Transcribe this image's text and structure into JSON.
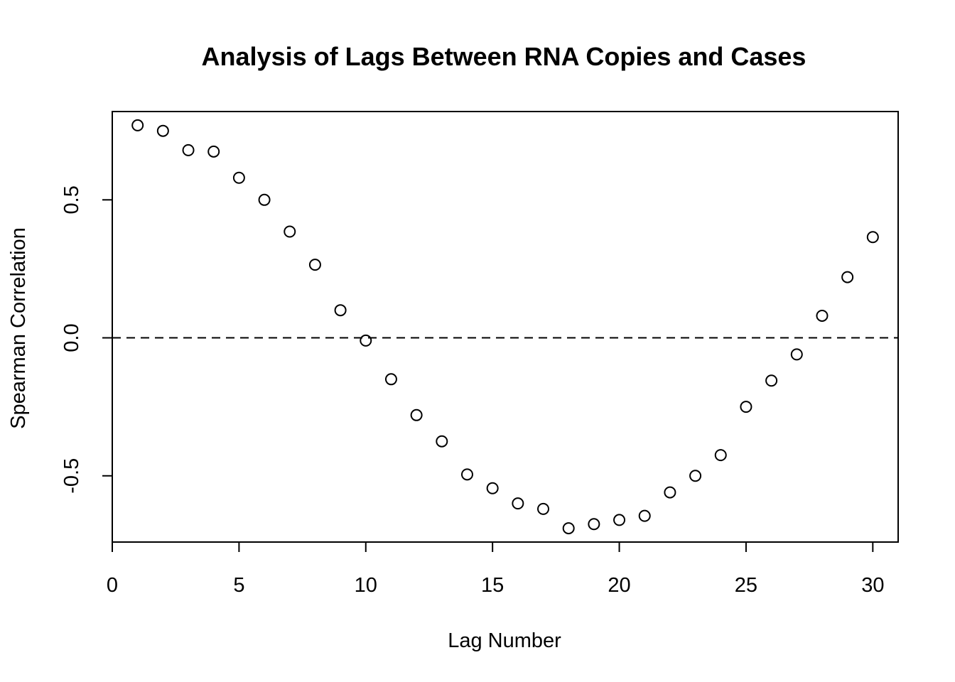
{
  "chart_data": {
    "type": "scatter",
    "title": "Analysis of Lags Between RNA Copies and Cases",
    "xlabel": "Lag Number",
    "ylabel": "Spearman Correlation",
    "xlim": [
      0,
      31
    ],
    "ylim": [
      -0.74,
      0.82
    ],
    "x_ticks": [
      0,
      5,
      10,
      15,
      20,
      25,
      30
    ],
    "x_tick_labels": [
      "0",
      "5",
      "10",
      "15",
      "20",
      "25",
      "30"
    ],
    "y_ticks": [
      -0.5,
      0.0,
      0.5
    ],
    "y_tick_labels": [
      "-0.5",
      "0.0",
      "0.5"
    ],
    "reference_line": {
      "y": 0,
      "style": "dashed"
    },
    "grid": false,
    "marker": "open-circle",
    "series": [
      {
        "x": [
          1,
          2,
          3,
          4,
          5,
          6,
          7,
          8,
          9,
          10,
          11,
          12,
          13,
          14,
          15,
          16,
          17,
          18,
          19,
          20,
          21,
          22,
          23,
          24,
          25,
          26,
          27,
          28,
          29,
          30
        ],
        "y": [
          0.77,
          0.75,
          0.68,
          0.675,
          0.58,
          0.5,
          0.385,
          0.265,
          0.1,
          -0.01,
          -0.15,
          -0.28,
          -0.375,
          -0.495,
          -0.545,
          -0.6,
          -0.62,
          -0.69,
          -0.675,
          -0.66,
          -0.645,
          -0.56,
          -0.5,
          -0.425,
          -0.25,
          -0.155,
          -0.06,
          0.08,
          0.22,
          0.365
        ]
      }
    ]
  }
}
